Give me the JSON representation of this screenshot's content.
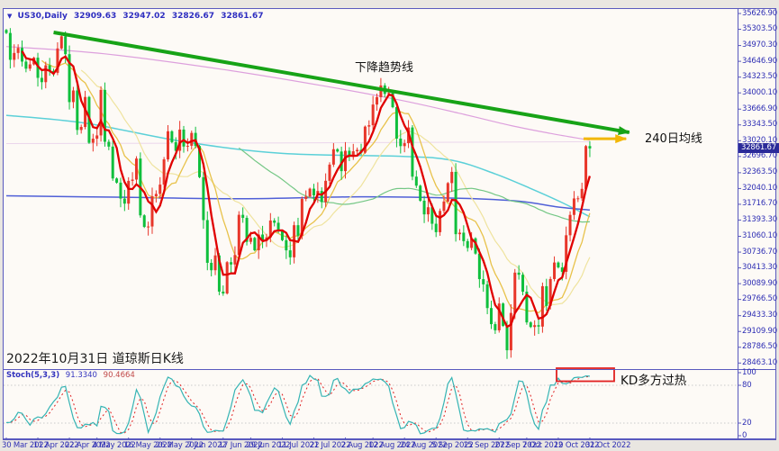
{
  "window": {
    "dropdown_icon": "▼",
    "symbol": "US30,Daily"
  },
  "colors": {
    "border_purple": "#5959BE",
    "axis_text_blue": "#2F2FB4",
    "price_tag_bg": "#2B2B99",
    "candle_up_red": "#E8362A",
    "candle_down_green": "#0FBF3C",
    "trendline_green": "#17A317",
    "ma240_arrow_yellow": "#F2B705",
    "overbought_box_red": "#E02020",
    "chart_background": "#FDFAF6"
  },
  "chart_data": {
    "type": "candlestick",
    "symbol": "US30",
    "timeframe": "Daily",
    "title_caption": "2022年10月31日 道琼斯日K线",
    "ohlc_header": {
      "open": "32909.63",
      "high": "32947.02",
      "low": "32826.67",
      "close": "32861.67"
    },
    "current_price_label": "32861.67",
    "y_axis_labels": [
      "35626.90",
      "35303.50",
      "34970.30",
      "34646.90",
      "34323.50",
      "34000.10",
      "33666.90",
      "33343.50",
      "33020.10",
      "32696.70",
      "32363.50",
      "32040.10",
      "31716.70",
      "31393.30",
      "31060.10",
      "30736.70",
      "30413.30",
      "30089.90",
      "29766.50",
      "29433.30",
      "29109.90",
      "28786.50",
      "28463.10"
    ],
    "y_range": [
      28463.1,
      35626.9
    ],
    "x_tick_labels": [
      "30 Mar 2022",
      "11 Apr 2022",
      "22 Apr 2022",
      "4 May 2022",
      "16 May 2022",
      "26 May 2022",
      "7 Jun 2022",
      "17 Jun 2022",
      "29 Jun 2022",
      "11 Jul 2022",
      "21 Jul 2022",
      "2 Aug 2022",
      "12 Aug 2022",
      "24 Aug 2022",
      "5 Sep 2022",
      "15 Sep 2022",
      "27 Sep 2022",
      "7 Oct 2022",
      "19 Oct 2022",
      "31 Oct 2022"
    ],
    "x_tick_bar_indices": [
      0,
      8,
      16,
      23,
      31,
      39,
      47,
      55,
      62,
      70,
      78,
      86,
      93,
      101,
      109,
      117,
      125,
      132,
      140,
      148
    ],
    "first_open": 35290,
    "closes": [
      35228,
      34678,
      34818,
      34922,
      34641,
      34496,
      34584,
      34721,
      34308,
      34220,
      34565,
      34451,
      34411,
      34911,
      35160,
      34793,
      33811,
      34049,
      33240,
      33302,
      33916,
      32977,
      33061,
      33128,
      34061,
      32998,
      32899,
      32246,
      32160,
      31834,
      31730,
      32197,
      32223,
      32654,
      31490,
      31253,
      31262,
      31880,
      31929,
      32120,
      32637,
      33213,
      32990,
      32813,
      33248,
      32900,
      32916,
      33180,
      32911,
      32273,
      31393,
      30517,
      30365,
      30669,
      29927,
      29889,
      30530,
      30483,
      30677,
      31501,
      31438,
      30947,
      31029,
      30775,
      31097,
      30968,
      31038,
      31384,
      31338,
      31173,
      30981,
      30773,
      30630,
      31288,
      31072,
      31827,
      31875,
      32037,
      31899,
      31990,
      31762,
      32198,
      32530,
      32845,
      32798,
      32396,
      32813,
      32727,
      32803,
      32832,
      32774,
      33309,
      33337,
      33761,
      33912,
      34152,
      33980,
      33999,
      33707,
      33063,
      32909,
      32969,
      33291,
      32283,
      32098,
      31790,
      31510,
      31656,
      31318,
      31145,
      31581,
      31774,
      32151,
      32381,
      31104,
      31135,
      30961,
      30822,
      31019,
      30706,
      30183,
      30076,
      29590,
      29260,
      29134,
      29683,
      29225,
      28725,
      29490,
      30316,
      30273,
      29926,
      29296,
      29202,
      29239,
      29210,
      30038,
      29634,
      30185,
      30523,
      30423,
      30333,
      31082,
      31499,
      31836,
      31839,
      32033,
      32909.63,
      32861.67
    ],
    "moving_averages": [
      {
        "name": "MA20",
        "period": 20,
        "color": "#EFE39E",
        "width": 1.2
      },
      {
        "name": "MA10",
        "period": 10,
        "color": "#E8C24A",
        "width": 1.3
      },
      {
        "name": "MA60",
        "period": 60,
        "color": "#74C785",
        "width": 1.2
      }
    ],
    "fast_ma": {
      "name": "MA5",
      "period": 5,
      "color": "#E00000",
      "width": 2.3
    },
    "overlay_polylines": [
      {
        "name": "long-flat-lavender",
        "color": "#EBD6EC",
        "width": 1,
        "points": [
          [
            0,
            32960
          ],
          [
            74,
            32975
          ],
          [
            148,
            33000
          ]
        ]
      },
      {
        "name": "MA240-pink",
        "color": "#DDA0DD",
        "width": 1.2,
        "points": [
          [
            0,
            34950
          ],
          [
            25,
            34800
          ],
          [
            55,
            34480
          ],
          [
            80,
            34150
          ],
          [
            100,
            33850
          ],
          [
            115,
            33580
          ],
          [
            128,
            33330
          ],
          [
            138,
            33170
          ],
          [
            148,
            33030
          ]
        ]
      },
      {
        "name": "MA100-cyan",
        "color": "#5BD0D8",
        "width": 1.5,
        "points": [
          [
            0,
            33540
          ],
          [
            20,
            33380
          ],
          [
            45,
            33000
          ],
          [
            70,
            32760
          ],
          [
            100,
            32700
          ],
          [
            113,
            32620
          ],
          [
            124,
            32340
          ],
          [
            133,
            32040
          ],
          [
            141,
            31750
          ],
          [
            148,
            31460
          ]
        ]
      },
      {
        "name": "MA120-blue",
        "color": "#4F5FD7",
        "width": 1.5,
        "points": [
          [
            0,
            31890
          ],
          [
            30,
            31860
          ],
          [
            60,
            31830
          ],
          [
            90,
            31870
          ],
          [
            115,
            31840
          ],
          [
            130,
            31780
          ],
          [
            140,
            31660
          ],
          [
            148,
            31600
          ]
        ]
      }
    ],
    "trendline": {
      "label": "下降趋势线",
      "color": "#17A317",
      "width": 4,
      "from_bar": 12,
      "from_price": 35240,
      "to_bar": 158,
      "to_price": 33190
    },
    "ma240_arrow": {
      "label": "240日均线",
      "color": "#F2B705",
      "width": 3,
      "from_bar": 146.4,
      "to_bar": 157.2,
      "price": 33060
    },
    "indicator": {
      "name": "Stoch(5,3,3)",
      "k_value": "91.3340",
      "d_value": "90.4664",
      "k_color": "#35B4B4",
      "d_color": "#E02020",
      "levels": [
        "100",
        "80",
        "20",
        "0"
      ],
      "level_values": [
        100,
        80,
        20,
        0
      ],
      "overbought_note": "KD多方过热"
    }
  }
}
